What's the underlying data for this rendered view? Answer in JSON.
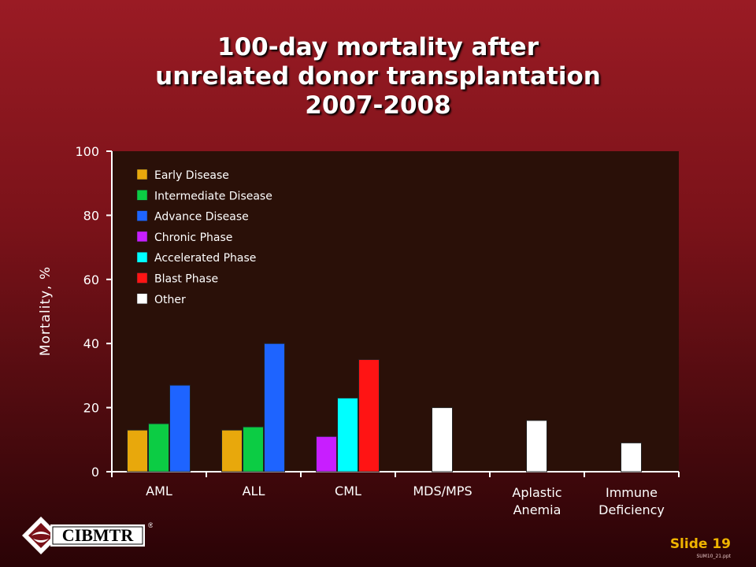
{
  "title": {
    "line1": "100-day mortality after",
    "line2": "unrelated donor transplantation",
    "line3": "2007-2008"
  },
  "chart_data": {
    "type": "bar",
    "title": "100-day mortality after unrelated donor transplantation 2007-2008",
    "ylabel": "Mortality, %",
    "ylim": [
      0,
      100
    ],
    "yticks": [
      0,
      20,
      40,
      60,
      80,
      100
    ],
    "grid": false,
    "legend_position": "top-left",
    "plot_background": "#2a1008",
    "categories": [
      {
        "label": [
          "AML"
        ]
      },
      {
        "label": [
          "ALL"
        ]
      },
      {
        "label": [
          "CML"
        ]
      },
      {
        "label": [
          "MDS/MPS"
        ]
      },
      {
        "label": [
          "Aplastic",
          "Anemia"
        ]
      },
      {
        "label": [
          "Immune",
          "Deficiency"
        ]
      }
    ],
    "series": [
      {
        "name": "Early Disease",
        "color": "#e8a80c",
        "values": [
          13,
          13,
          null,
          null,
          null,
          null
        ]
      },
      {
        "name": "Intermediate Disease",
        "color": "#0ccc44",
        "values": [
          15,
          14,
          null,
          null,
          null,
          null
        ]
      },
      {
        "name": "Advance Disease",
        "color": "#1e64ff",
        "values": [
          27,
          40,
          null,
          null,
          null,
          null
        ]
      },
      {
        "name": "Chronic Phase",
        "color": "#c81eff",
        "values": [
          null,
          null,
          11,
          null,
          null,
          null
        ]
      },
      {
        "name": "Accelerated Phase",
        "color": "#00ffff",
        "values": [
          null,
          null,
          23,
          null,
          null,
          null
        ]
      },
      {
        "name": "Blast Phase",
        "color": "#ff1414",
        "values": [
          null,
          null,
          35,
          null,
          null,
          null
        ]
      },
      {
        "name": "Other",
        "color": "#ffffff",
        "values": [
          null,
          null,
          null,
          20,
          16,
          9
        ]
      }
    ]
  },
  "logo": {
    "text": "CIBMTR",
    "mark": "®"
  },
  "footer": {
    "slide": "Slide 19",
    "file": "SUM10_21.ppt"
  }
}
